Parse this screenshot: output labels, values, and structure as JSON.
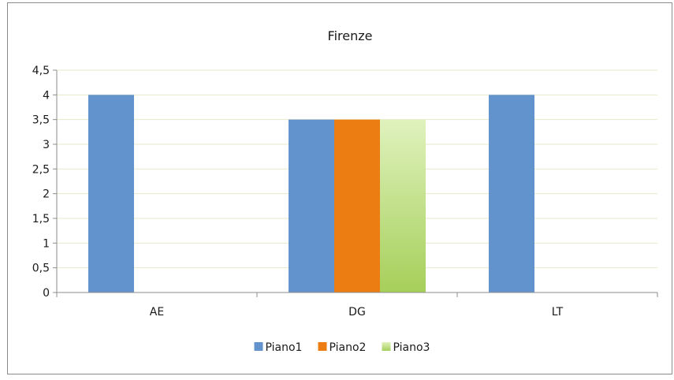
{
  "chart_data": {
    "type": "bar",
    "title": "Firenze",
    "categories": [
      "AE",
      "DG",
      "LT"
    ],
    "series": [
      {
        "name": "Piano1",
        "values": [
          4,
          3.5,
          4
        ],
        "color": "#6293cc"
      },
      {
        "name": "Piano2",
        "values": [
          0,
          3.5,
          0
        ],
        "color": "#eb7d13"
      },
      {
        "name": "Piano3",
        "values": [
          0,
          3.5,
          0
        ],
        "color": "#b9dc7a"
      }
    ],
    "xlabel": "",
    "ylabel": "",
    "ylim": [
      0,
      4.5
    ],
    "yticks": [
      "0",
      "0,5",
      "1",
      "1,5",
      "2",
      "2,5",
      "3",
      "3,5",
      "4",
      "4,5"
    ],
    "grid": true,
    "legend_position": "bottom"
  }
}
